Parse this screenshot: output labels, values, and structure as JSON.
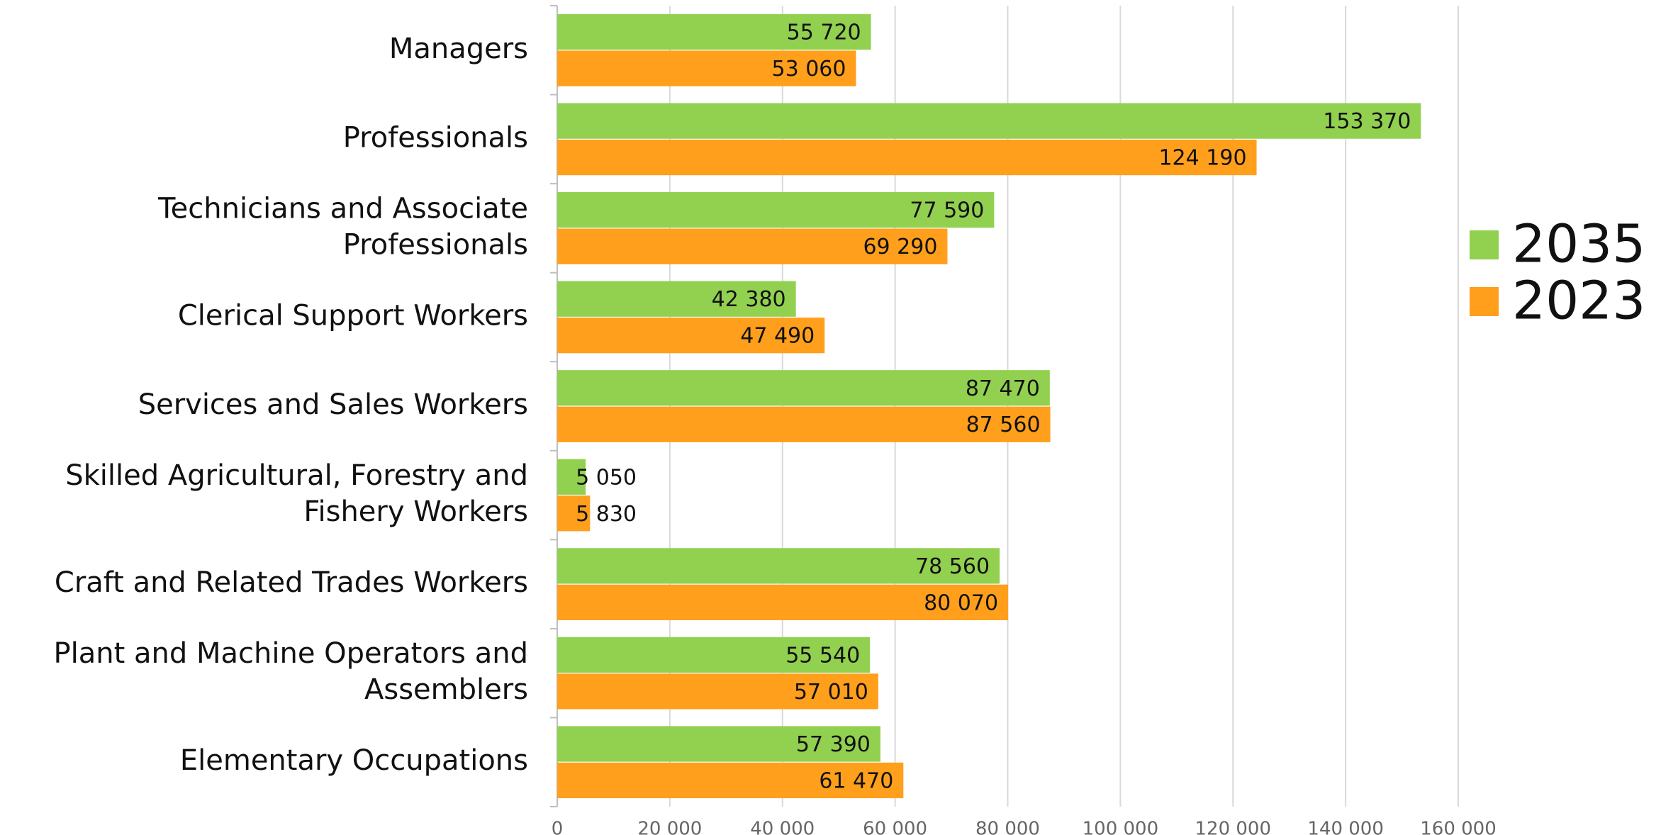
{
  "chart_data": {
    "type": "bar",
    "orientation": "horizontal",
    "categories": [
      "Managers",
      "Professionals",
      "Technicians and Associate\nProfessionals",
      "Clerical Support Workers",
      "Services and Sales Workers",
      "Skilled Agricultural, Forestry and\nFishery Workers",
      "Craft and Related Trades Workers",
      "Plant and Machine Operators and\nAssemblers",
      "Elementary Occupations"
    ],
    "series": [
      {
        "name": "2035",
        "color": "#92d050",
        "values": [
          55720,
          153370,
          77590,
          42380,
          87470,
          5050,
          78560,
          55540,
          57390
        ],
        "value_labels": [
          "55 720",
          "153 370",
          "77 590",
          "42 380",
          "87 470",
          "5 050",
          "78 560",
          "55 540",
          "57 390"
        ]
      },
      {
        "name": "2023",
        "color": "#ff9f1c",
        "values": [
          53060,
          124190,
          69290,
          47490,
          87560,
          5830,
          80070,
          57010,
          61470
        ],
        "value_labels": [
          "53 060",
          "124 190",
          "69 290",
          "47 490",
          "87 560",
          "5 830",
          "80 070",
          "57 010",
          "61 470"
        ]
      }
    ],
    "xlim": [
      0,
      160000
    ],
    "xticks": [
      0,
      {
        "value": 20000,
        "label": "20 000"
      },
      {
        "value": 40000,
        "label": "40 000"
      },
      {
        "value": 60000,
        "label": "60 000"
      },
      {
        "value": 80000,
        "label": "80 000"
      },
      {
        "value": 100000,
        "label": "100 000"
      },
      {
        "value": 120000,
        "label": "120 000"
      },
      {
        "value": 140000,
        "label": "140 000"
      },
      {
        "value": 160000,
        "label": "160 000"
      }
    ],
    "grid": true,
    "legend": "right"
  }
}
